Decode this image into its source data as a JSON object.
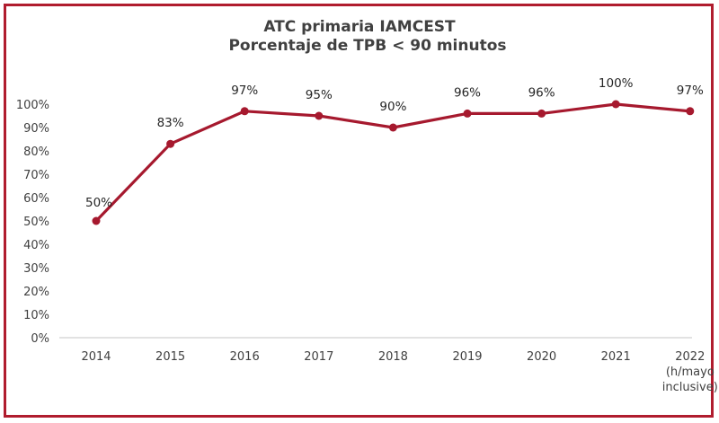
{
  "title": {
    "line1": "ATC primaria IAMCEST",
    "line2": "Porcentaje de TPB < 90 minutos"
  },
  "colors": {
    "frame": "#b01c2e",
    "series": "#a6192e",
    "axis": "#d9d9d9",
    "text": "#404040"
  },
  "chart_data": {
    "type": "line",
    "title": "ATC primaria IAMCEST — Porcentaje de TPB < 90 minutos",
    "categories": [
      "2014",
      "2015",
      "2016",
      "2017",
      "2018",
      "2019",
      "2020",
      "2021",
      "2022 (h/mayo inclusive)"
    ],
    "category_lines": [
      [
        "2014"
      ],
      [
        "2015"
      ],
      [
        "2016"
      ],
      [
        "2017"
      ],
      [
        "2018"
      ],
      [
        "2019"
      ],
      [
        "2020"
      ],
      [
        "2021"
      ],
      [
        "2022",
        "(h/mayo",
        "inclusive)"
      ]
    ],
    "series": [
      {
        "name": "Porcentaje de TPB < 90 minutos",
        "values": [
          50,
          83,
          97,
          95,
          90,
          96,
          96,
          100,
          97
        ],
        "labels": [
          "50%",
          "83%",
          "97%",
          "95%",
          "90%",
          "96%",
          "96%",
          "100%",
          "97%"
        ]
      }
    ],
    "xlabel": "",
    "ylabel": "",
    "ylim": [
      0,
      100
    ],
    "yticks": [
      "0%",
      "10%",
      "20%",
      "30%",
      "40%",
      "50%",
      "60%",
      "70%",
      "80%",
      "90%",
      "100%"
    ],
    "grid": false,
    "legend": "none"
  }
}
